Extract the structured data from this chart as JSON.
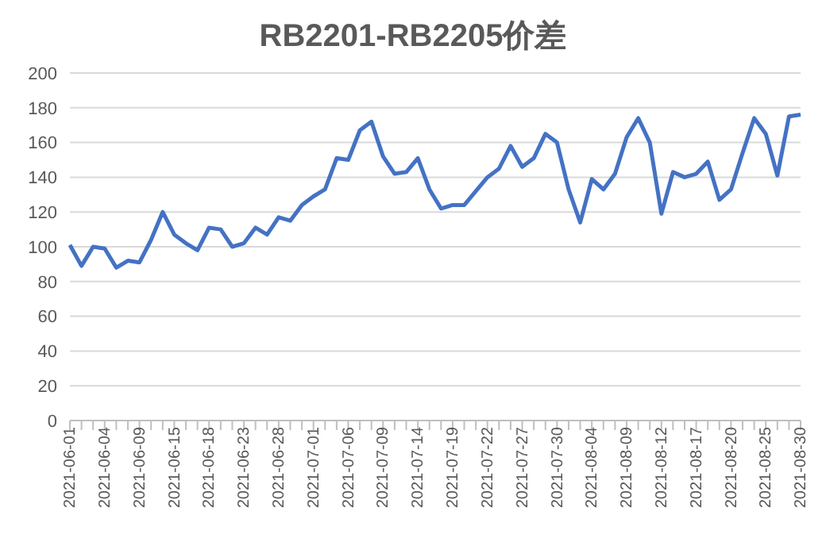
{
  "chart_data": {
    "type": "line",
    "title": "RB2201-RB2205价差",
    "categories": [
      "2021-06-01",
      null,
      null,
      "2021-06-04",
      null,
      null,
      "2021-06-09",
      null,
      null,
      "2021-06-15",
      null,
      null,
      "2021-06-18",
      null,
      null,
      "2021-06-23",
      null,
      null,
      "2021-06-28",
      null,
      null,
      "2021-07-01",
      null,
      null,
      "2021-07-06",
      null,
      null,
      "2021-07-09",
      null,
      null,
      "2021-07-14",
      null,
      null,
      "2021-07-19",
      null,
      null,
      "2021-07-22",
      null,
      null,
      "2021-07-27",
      null,
      null,
      "2021-07-30",
      null,
      null,
      "2021-08-04",
      null,
      null,
      "2021-08-09",
      null,
      null,
      "2021-08-12",
      null,
      null,
      "2021-08-17",
      null,
      null,
      "2021-08-20",
      null,
      null,
      "2021-08-25",
      null,
      null,
      "2021-08-30"
    ],
    "series": [
      {
        "color": "#4472c4",
        "values": [
          101,
          89,
          100,
          99,
          88,
          92,
          91,
          104,
          120,
          107,
          102,
          98,
          111,
          110,
          100,
          102,
          111,
          107,
          117,
          115,
          124,
          129,
          133,
          151,
          150,
          167,
          172,
          152,
          142,
          143,
          151,
          133,
          122,
          124,
          124,
          132,
          140,
          145,
          158,
          146,
          151,
          165,
          160,
          133,
          114,
          139,
          133,
          142,
          163,
          174,
          160,
          119,
          143,
          140,
          142,
          149,
          127,
          133,
          154,
          174,
          165,
          141,
          175,
          176
        ]
      }
    ],
    "ylim": [
      0,
      200
    ],
    "yticks": [
      0,
      20,
      40,
      60,
      80,
      100,
      120,
      140,
      160,
      180,
      200
    ],
    "grid": "y",
    "legend": false,
    "marker": "none",
    "line_style": "solid"
  }
}
